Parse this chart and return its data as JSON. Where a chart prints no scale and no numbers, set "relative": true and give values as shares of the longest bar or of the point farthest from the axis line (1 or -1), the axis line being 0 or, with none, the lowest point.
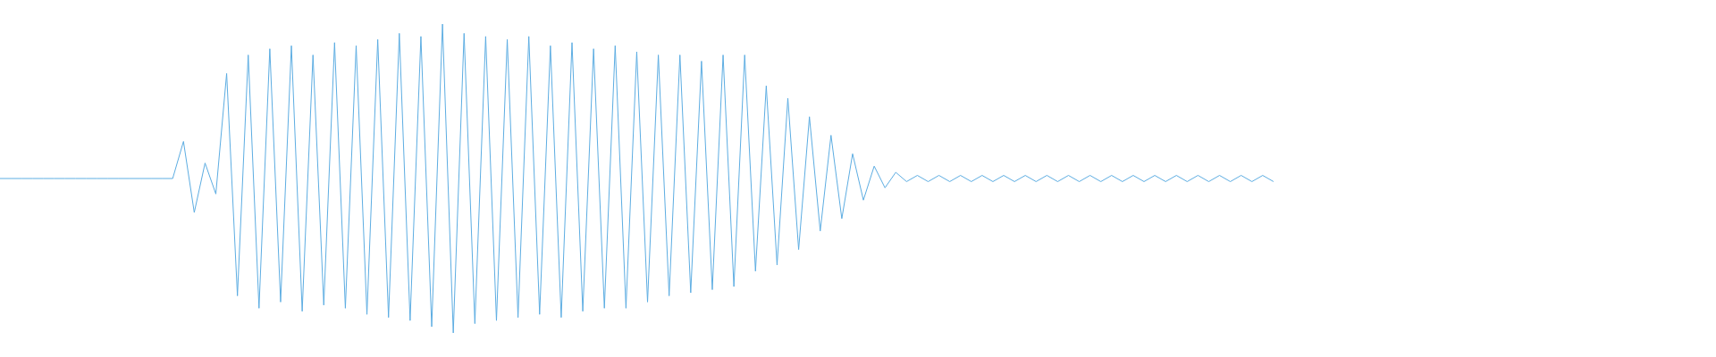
{
  "chart_data": {
    "type": "line",
    "relative": true,
    "categories": [
      null,
      null,
      null,
      null,
      null,
      null,
      null,
      null,
      null,
      null,
      null,
      null,
      null,
      null,
      null,
      null,
      null,
      null,
      null,
      null,
      null,
      null,
      null,
      null,
      null,
      null,
      null,
      null,
      null,
      null,
      null,
      null,
      null,
      null,
      null,
      null,
      null,
      null,
      null,
      null,
      null,
      null,
      null,
      null,
      null,
      null,
      null,
      null,
      null,
      null,
      null,
      null,
      null,
      null,
      null,
      null,
      null,
      null,
      null,
      null,
      null,
      null,
      null,
      null,
      null,
      null,
      null,
      null,
      null,
      null,
      null,
      null,
      null,
      null,
      null,
      null,
      null,
      null,
      null,
      null,
      null,
      null,
      null,
      null,
      null,
      null,
      null,
      null,
      null,
      null,
      null,
      null,
      null,
      null,
      null,
      null,
      null,
      null,
      null,
      null,
      null,
      null,
      null,
      null,
      null,
      null,
      null,
      null,
      null,
      null,
      null,
      null,
      null,
      null,
      null,
      null,
      null,
      null,
      null,
      null,
      null,
      null,
      null,
      null,
      null,
      null,
      null,
      null,
      null,
      null,
      null,
      null,
      null,
      null,
      null,
      null,
      null,
      null,
      null,
      null,
      null,
      null,
      null,
      null,
      null,
      null,
      null,
      null,
      null,
      null,
      null,
      null,
      null,
      null,
      null,
      null,
      null,
      null,
      null,
      null
    ],
    "series": [
      {
        "color": "#5dade2",
        "values": [
          0.5,
          0.5,
          0.5,
          0.5,
          0.5,
          0.5,
          0.5,
          0.5,
          0.5,
          0.5,
          0.5,
          0.5,
          0.5,
          0.5,
          0.5,
          0.5,
          0.5,
          0.62,
          0.39,
          0.55,
          0.45,
          0.84,
          0.12,
          0.9,
          0.08,
          0.92,
          0.1,
          0.93,
          0.07,
          0.9,
          0.09,
          0.94,
          0.08,
          0.93,
          0.06,
          0.95,
          0.05,
          0.97,
          0.04,
          0.96,
          0.02,
          1,
          0,
          0.97,
          0.03,
          0.96,
          0.04,
          0.95,
          0.05,
          0.96,
          0.06,
          0.93,
          0.05,
          0.94,
          0.07,
          0.92,
          0.08,
          0.93,
          0.08,
          0.91,
          0.1,
          0.9,
          0.12,
          0.9,
          0.13,
          0.88,
          0.14,
          0.9,
          0.15,
          0.9,
          0.2,
          0.8,
          0.22,
          0.76,
          0.27,
          0.7,
          0.33,
          0.64,
          0.37,
          0.58,
          0.43,
          0.54,
          0.47,
          0.52,
          0.49,
          0.51,
          0.49,
          0.51,
          0.49,
          0.51,
          0.49,
          0.51,
          0.49,
          0.51,
          0.49,
          0.51,
          0.49,
          0.51,
          0.49,
          0.51,
          0.49,
          0.51,
          0.49,
          0.51,
          0.49,
          0.51,
          0.49,
          0.51,
          0.49,
          0.51,
          0.49,
          0.51,
          0.49,
          0.51,
          0.49,
          0.51,
          0.49,
          0.51,
          0.49,
          null,
          null,
          null,
          null,
          null,
          null,
          null,
          null,
          null,
          null,
          null,
          null,
          null,
          null,
          null,
          null,
          null,
          null,
          null,
          null,
          null,
          null,
          null,
          null,
          null,
          null,
          null,
          null,
          null,
          null,
          null,
          null,
          null,
          null,
          null,
          null,
          null,
          null,
          null,
          null,
          null
        ]
      }
    ]
  }
}
